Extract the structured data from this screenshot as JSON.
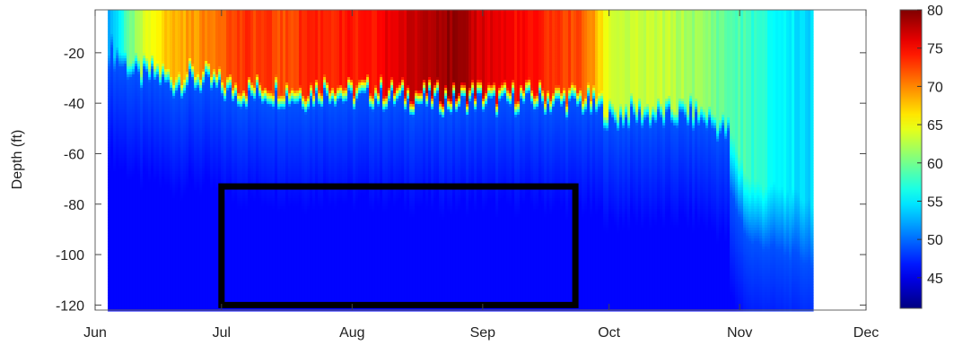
{
  "chart_data": {
    "type": "heatmap",
    "title": "",
    "xlabel": "",
    "ylabel": "Depth (ft)",
    "x_tick_labels": [
      "Jun",
      "Jul",
      "Aug",
      "Sep",
      "Oct",
      "Nov",
      "Dec"
    ],
    "x_tick_days": [
      0,
      30,
      61,
      92,
      122,
      153,
      183
    ],
    "xlim_days": [
      0,
      183
    ],
    "data_range_days": [
      3,
      170
    ],
    "y_tick_labels": [
      "-20",
      "-40",
      "-60",
      "-80",
      "-100",
      "-120"
    ],
    "y_tick_values": [
      -20,
      -40,
      -60,
      -80,
      -100,
      -120
    ],
    "ylim": [
      -122,
      -3
    ],
    "colorbar": {
      "min": 41,
      "max": 80,
      "tick_labels": [
        "80",
        "75",
        "70",
        "65",
        "60",
        "55",
        "50",
        "45"
      ],
      "tick_values": [
        80,
        75,
        70,
        65,
        60,
        55,
        50,
        45
      ],
      "colormap": "jet"
    },
    "profiles": [
      {
        "day": 3,
        "surface_temp": 52,
        "thermocline_depth": -15
      },
      {
        "day": 7,
        "surface_temp": 58,
        "thermocline_depth": -20
      },
      {
        "day": 10,
        "surface_temp": 62,
        "thermocline_depth": -25
      },
      {
        "day": 14,
        "surface_temp": 66,
        "thermocline_depth": -24
      },
      {
        "day": 18,
        "surface_temp": 68,
        "thermocline_depth": -28
      },
      {
        "day": 22,
        "surface_temp": 69,
        "thermocline_depth": -26
      },
      {
        "day": 26,
        "surface_temp": 70,
        "thermocline_depth": -27
      },
      {
        "day": 30,
        "surface_temp": 72,
        "thermocline_depth": -30
      },
      {
        "day": 35,
        "surface_temp": 73,
        "thermocline_depth": -32
      },
      {
        "day": 40,
        "surface_temp": 73,
        "thermocline_depth": -31
      },
      {
        "day": 45,
        "surface_temp": 72,
        "thermocline_depth": -32
      },
      {
        "day": 50,
        "surface_temp": 74,
        "thermocline_depth": -33
      },
      {
        "day": 55,
        "surface_temp": 74,
        "thermocline_depth": -30
      },
      {
        "day": 60,
        "surface_temp": 74,
        "thermocline_depth": -33
      },
      {
        "day": 65,
        "surface_temp": 74,
        "thermocline_depth": -32
      },
      {
        "day": 70,
        "surface_temp": 76,
        "thermocline_depth": -33
      },
      {
        "day": 75,
        "surface_temp": 77,
        "thermocline_depth": -34
      },
      {
        "day": 80,
        "surface_temp": 79,
        "thermocline_depth": -34
      },
      {
        "day": 85,
        "surface_temp": 79,
        "thermocline_depth": -35
      },
      {
        "day": 90,
        "surface_temp": 77,
        "thermocline_depth": -33
      },
      {
        "day": 95,
        "surface_temp": 76,
        "thermocline_depth": -35
      },
      {
        "day": 100,
        "surface_temp": 75,
        "thermocline_depth": -34
      },
      {
        "day": 105,
        "surface_temp": 74,
        "thermocline_depth": -34
      },
      {
        "day": 110,
        "surface_temp": 73,
        "thermocline_depth": -35
      },
      {
        "day": 115,
        "surface_temp": 72,
        "thermocline_depth": -35
      },
      {
        "day": 118,
        "surface_temp": 69,
        "thermocline_depth": -37
      },
      {
        "day": 120,
        "surface_temp": 66,
        "thermocline_depth": -38
      },
      {
        "day": 122,
        "surface_temp": 64,
        "thermocline_depth": -42
      },
      {
        "day": 126,
        "surface_temp": 63,
        "thermocline_depth": -40
      },
      {
        "day": 130,
        "surface_temp": 63,
        "thermocline_depth": -40
      },
      {
        "day": 135,
        "surface_temp": 63,
        "thermocline_depth": -41
      },
      {
        "day": 140,
        "surface_temp": 62,
        "thermocline_depth": -40
      },
      {
        "day": 145,
        "surface_temp": 61,
        "thermocline_depth": -42
      },
      {
        "day": 150,
        "surface_temp": 59,
        "thermocline_depth": -48
      },
      {
        "day": 155,
        "surface_temp": 58,
        "thermocline_depth": -70
      },
      {
        "day": 160,
        "surface_temp": 56,
        "thermocline_depth": -72
      },
      {
        "day": 165,
        "surface_temp": 55,
        "thermocline_depth": -75
      },
      {
        "day": 170,
        "surface_temp": 54,
        "thermocline_depth": -78
      }
    ],
    "bottom_temp": 46,
    "annotations": [
      {
        "type": "rectangle",
        "x_days": [
          30,
          114
        ],
        "y": [
          -73,
          -120
        ],
        "color": "#000000"
      }
    ]
  }
}
